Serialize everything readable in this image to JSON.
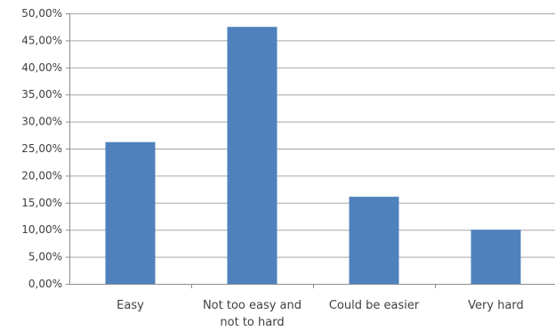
{
  "chart_data": {
    "type": "bar",
    "categories": [
      [
        "Easy"
      ],
      [
        "Not too easy and",
        "not to hard"
      ],
      [
        "Could be easier"
      ],
      [
        "Very hard"
      ]
    ],
    "values": [
      26.2,
      47.5,
      16.1,
      10.0
    ],
    "ylim": [
      0,
      50
    ],
    "ytick_step": 5,
    "y_tick_labels": [
      "0,00%",
      "5,00%",
      "10,00%",
      "15,00%",
      "20,00%",
      "25,00%",
      "30,00%",
      "35,00%",
      "40,00%",
      "45,00%",
      "50,00%"
    ],
    "grid": true,
    "legend": "none",
    "colors": {
      "bar": "#4f81bd",
      "grid": "#a6a6a6",
      "axis": "#8c8c8c",
      "text": "#404040"
    }
  }
}
